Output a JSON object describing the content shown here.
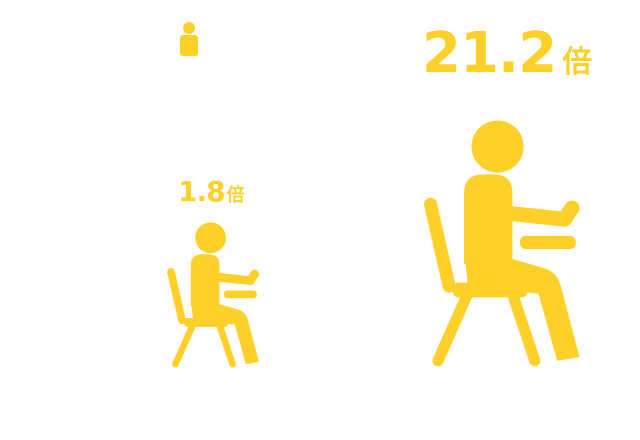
{
  "colors": {
    "accent": "#FFD02A"
  },
  "icons": {
    "small_person": "person-icon",
    "seated_person": "seated-person-writing-icon"
  },
  "left_group": {
    "multiplier_value": "1.8",
    "multiplier_unit": "倍"
  },
  "right_group": {
    "multiplier_value": "21.2",
    "multiplier_unit": "倍"
  }
}
